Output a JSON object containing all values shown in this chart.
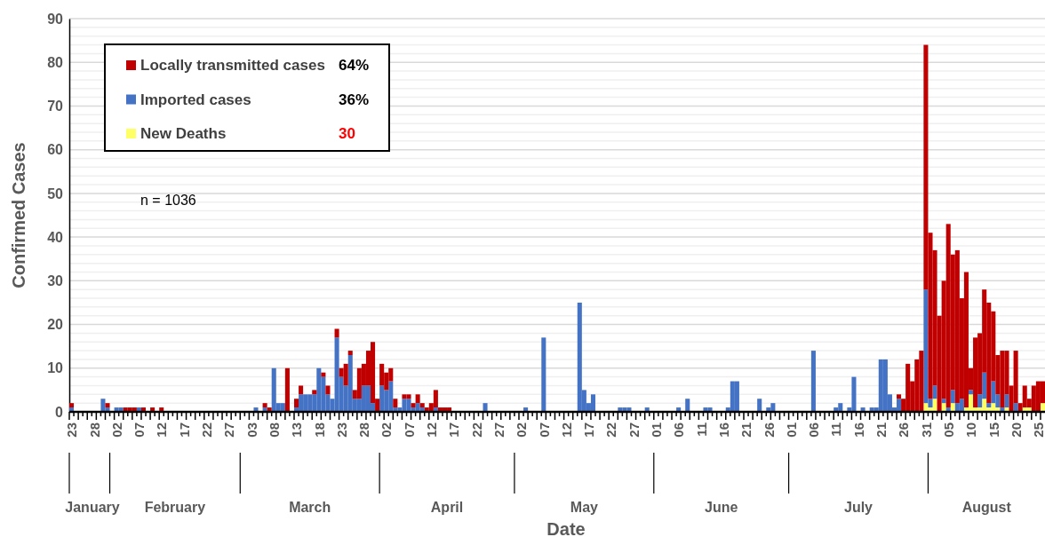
{
  "chart_data": {
    "type": "bar",
    "stacked": true,
    "xlabel": "Date",
    "ylabel": "Confirmed Cases",
    "x": [
      "--01-23",
      "--01-24",
      "--01-25",
      "--01-26",
      "--01-27",
      "--01-28",
      "--01-29",
      "--01-30",
      "--01-31",
      "--02-01",
      "--02-02",
      "--02-03",
      "--02-04",
      "--02-05",
      "--02-06",
      "--02-07",
      "--02-08",
      "--02-09",
      "--02-10",
      "--02-11",
      "--02-12",
      "--02-13",
      "--02-14",
      "--02-15",
      "--02-16",
      "--02-17",
      "--02-18",
      "--02-19",
      "--02-20",
      "--02-21",
      "--02-22",
      "--02-23",
      "--02-24",
      "--02-25",
      "--02-26",
      "--02-27",
      "--02-28",
      "--02-29",
      "--03-01",
      "--03-02",
      "--03-03",
      "--03-04",
      "--03-05",
      "--03-06",
      "--03-07",
      "--03-08",
      "--03-09",
      "--03-10",
      "--03-11",
      "--03-12",
      "--03-13",
      "--03-14",
      "--03-15",
      "--03-16",
      "--03-17",
      "--03-18",
      "--03-19",
      "--03-20",
      "--03-21",
      "--03-22",
      "--03-23",
      "--03-24",
      "--03-25",
      "--03-26",
      "--03-27",
      "--03-28",
      "--03-29",
      "--03-30",
      "--03-31",
      "--04-01",
      "--04-02",
      "--04-03",
      "--04-04",
      "--04-05",
      "--04-06",
      "--04-07",
      "--04-08",
      "--04-09",
      "--04-10",
      "--04-11",
      "--04-12",
      "--04-13",
      "--04-14",
      "--04-15",
      "--04-16",
      "--04-17",
      "--04-18",
      "--04-19",
      "--04-20",
      "--04-21",
      "--04-22",
      "--04-23",
      "--04-24",
      "--04-25",
      "--04-26",
      "--04-27",
      "--04-28",
      "--04-29",
      "--04-30",
      "--05-01",
      "--05-02",
      "--05-03",
      "--05-04",
      "--05-05",
      "--05-06",
      "--05-07",
      "--05-08",
      "--05-09",
      "--05-10",
      "--05-11",
      "--05-12",
      "--05-13",
      "--05-14",
      "--05-15",
      "--05-16",
      "--05-17",
      "--05-18",
      "--05-19",
      "--05-20",
      "--05-21",
      "--05-22",
      "--05-23",
      "--05-24",
      "--05-25",
      "--05-26",
      "--05-27",
      "--05-28",
      "--05-29",
      "--05-30",
      "--05-31",
      "--06-01",
      "--06-02",
      "--06-03",
      "--06-04",
      "--06-05",
      "--06-06",
      "--06-07",
      "--06-08",
      "--06-09",
      "--06-10",
      "--06-11",
      "--06-12",
      "--06-13",
      "--06-14",
      "--06-15",
      "--06-16",
      "--06-17",
      "--06-18",
      "--06-19",
      "--06-20",
      "--06-21",
      "--06-22",
      "--06-23",
      "--06-24",
      "--06-25",
      "--06-26",
      "--06-27",
      "--06-28",
      "--06-29",
      "--06-30",
      "--07-01",
      "--07-02",
      "--07-03",
      "--07-04",
      "--07-05",
      "--07-06",
      "--07-07",
      "--07-08",
      "--07-09",
      "--07-10",
      "--07-11",
      "--07-12",
      "--07-13",
      "--07-14",
      "--07-15",
      "--07-16",
      "--07-17",
      "--07-18",
      "--07-19",
      "--07-20",
      "--07-21",
      "--07-22",
      "--07-23",
      "--07-24",
      "--07-25",
      "--07-26",
      "--07-27",
      "--07-28",
      "--07-29",
      "--07-30",
      "--07-31",
      "--08-01",
      "--08-02",
      "--08-03",
      "--08-04",
      "--08-05",
      "--08-06",
      "--08-07",
      "--08-08",
      "--08-09",
      "--08-10",
      "--08-11",
      "--08-12",
      "--08-13",
      "--08-14",
      "--08-15",
      "--08-16",
      "--08-17",
      "--08-18",
      "--08-19",
      "--08-20",
      "--08-21",
      "--08-22",
      "--08-23",
      "--08-24",
      "--08-25",
      "--08-26"
    ],
    "xlim": [
      "--01-23",
      "--08-26"
    ],
    "xticks": [
      {
        "value": "--01-23",
        "label": "23"
      },
      {
        "value": "--01-28",
        "label": "28"
      },
      {
        "value": "--02-02",
        "label": "02"
      },
      {
        "value": "--02-07",
        "label": "07"
      },
      {
        "value": "--02-12",
        "label": "12"
      },
      {
        "value": "--02-17",
        "label": "17"
      },
      {
        "value": "--02-22",
        "label": "22"
      },
      {
        "value": "--02-27",
        "label": "27"
      },
      {
        "value": "--03-03",
        "label": "03"
      },
      {
        "value": "--03-08",
        "label": "08"
      },
      {
        "value": "--03-13",
        "label": "13"
      },
      {
        "value": "--03-18",
        "label": "18"
      },
      {
        "value": "--03-23",
        "label": "23"
      },
      {
        "value": "--03-28",
        "label": "28"
      },
      {
        "value": "--04-02",
        "label": "02"
      },
      {
        "value": "--04-07",
        "label": "07"
      },
      {
        "value": "--04-12",
        "label": "12"
      },
      {
        "value": "--04-17",
        "label": "17"
      },
      {
        "value": "--04-22",
        "label": "22"
      },
      {
        "value": "--04-27",
        "label": "27"
      },
      {
        "value": "--05-02",
        "label": "02"
      },
      {
        "value": "--05-07",
        "label": "07"
      },
      {
        "value": "--05-12",
        "label": "12"
      },
      {
        "value": "--05-17",
        "label": "17"
      },
      {
        "value": "--05-22",
        "label": "22"
      },
      {
        "value": "--05-27",
        "label": "27"
      },
      {
        "value": "--06-01",
        "label": "01"
      },
      {
        "value": "--06-06",
        "label": "06"
      },
      {
        "value": "--06-11",
        "label": "11"
      },
      {
        "value": "--06-16",
        "label": "16"
      },
      {
        "value": "--06-21",
        "label": "21"
      },
      {
        "value": "--06-26",
        "label": "26"
      },
      {
        "value": "--07-01",
        "label": "01"
      },
      {
        "value": "--07-06",
        "label": "06"
      },
      {
        "value": "--07-11",
        "label": "11"
      },
      {
        "value": "--07-16",
        "label": "16"
      },
      {
        "value": "--07-21",
        "label": "21"
      },
      {
        "value": "--07-26",
        "label": "26"
      },
      {
        "value": "--07-31",
        "label": "31"
      },
      {
        "value": "--08-05",
        "label": "05"
      },
      {
        "value": "--08-10",
        "label": "10"
      },
      {
        "value": "--08-15",
        "label": "15"
      },
      {
        "value": "--08-20",
        "label": "20"
      },
      {
        "value": "--08-25",
        "label": "25"
      }
    ],
    "ylim": [
      0,
      90
    ],
    "yticks": [
      0,
      {
        "value": 2,
        "label": null
      },
      {
        "value": 4,
        "label": null
      },
      {
        "value": 6,
        "label": null
      },
      {
        "value": 8,
        "label": null
      },
      10,
      {
        "value": 12,
        "label": null
      },
      {
        "value": 14,
        "label": null
      },
      {
        "value": 16,
        "label": null
      },
      {
        "value": 18,
        "label": null
      },
      20,
      {
        "value": 22,
        "label": null
      },
      {
        "value": 24,
        "label": null
      },
      {
        "value": 26,
        "label": null
      },
      {
        "value": 28,
        "label": null
      },
      30,
      {
        "value": 32,
        "label": null
      },
      {
        "value": 34,
        "label": null
      },
      {
        "value": 36,
        "label": null
      },
      {
        "value": 38,
        "label": null
      },
      40,
      {
        "value": 42,
        "label": null
      },
      {
        "value": 44,
        "label": null
      },
      {
        "value": 46,
        "label": null
      },
      {
        "value": 48,
        "label": null
      },
      50,
      {
        "value": 52,
        "label": null
      },
      {
        "value": 54,
        "label": null
      },
      {
        "value": 56,
        "label": null
      },
      {
        "value": 58,
        "label": null
      },
      60,
      {
        "value": 62,
        "label": null
      },
      {
        "value": 64,
        "label": null
      },
      {
        "value": 66,
        "label": null
      },
      {
        "value": 68,
        "label": null
      },
      70,
      {
        "value": 72,
        "label": null
      },
      {
        "value": 74,
        "label": null
      },
      {
        "value": 76,
        "label": null
      },
      {
        "value": 78,
        "label": null
      },
      80,
      {
        "value": 82,
        "label": null
      },
      {
        "value": 84,
        "label": null
      },
      {
        "value": 86,
        "label": null
      },
      {
        "value": 88,
        "label": null
      },
      90
    ],
    "grid": "y",
    "legend": "top left",
    "series": [
      {
        "name": "New Deaths",
        "color": "#ffff66",
        "values": [
          0,
          0,
          0,
          0,
          0,
          0,
          0,
          0,
          0,
          0,
          0,
          0,
          0,
          0,
          0,
          0,
          0,
          0,
          0,
          0,
          0,
          0,
          0,
          0,
          0,
          0,
          0,
          0,
          0,
          0,
          0,
          0,
          0,
          0,
          0,
          0,
          0,
          0,
          0,
          0,
          0,
          0,
          0,
          0,
          0,
          0,
          0,
          0,
          0,
          0,
          0,
          0,
          0,
          0,
          0,
          0,
          0,
          0,
          0,
          0,
          0,
          0,
          0,
          0,
          0,
          0,
          0,
          0,
          0,
          0,
          0,
          0,
          0,
          0,
          0,
          0,
          0,
          0,
          0,
          0,
          0,
          0,
          0,
          0,
          0,
          0,
          0,
          0,
          0,
          0,
          0,
          0,
          0,
          0,
          0,
          0,
          0,
          0,
          0,
          0,
          0,
          0,
          0,
          0,
          0,
          0,
          0,
          0,
          0,
          0,
          0,
          0,
          0,
          0,
          0,
          0,
          0,
          0,
          0,
          0,
          0,
          0,
          0,
          0,
          0,
          0,
          0,
          0,
          0,
          0,
          0,
          0,
          0,
          0,
          0,
          0,
          0,
          0,
          0,
          0,
          0,
          0,
          0,
          0,
          0,
          0,
          0,
          0,
          0,
          0,
          0,
          0,
          0,
          0,
          0,
          0,
          0,
          0,
          0,
          0,
          0,
          0,
          0,
          0,
          0,
          0,
          0,
          0,
          0,
          0,
          0,
          0,
          0,
          0,
          0,
          0,
          0,
          0,
          0,
          0,
          0,
          0,
          0,
          0,
          0,
          0,
          0,
          0,
          0,
          0,
          2,
          1,
          3,
          0,
          2,
          0,
          2,
          0,
          0,
          1,
          4,
          1,
          1,
          3,
          1,
          2,
          1,
          0,
          1,
          0,
          0,
          0,
          1,
          1,
          0,
          0,
          2
        ]
      },
      {
        "name": "Imported cases",
        "color": "#4472c4",
        "values": [
          1,
          0,
          0,
          0,
          0,
          0,
          0,
          3,
          1,
          0,
          1,
          1,
          0,
          0,
          0,
          1,
          0,
          0,
          0,
          0,
          0,
          0,
          0,
          0,
          0,
          0,
          0,
          0,
          0,
          0,
          0,
          0,
          0,
          0,
          0,
          0,
          0,
          0,
          0,
          0,
          0,
          1,
          0,
          1,
          0,
          10,
          2,
          2,
          0,
          0,
          1,
          4,
          4,
          4,
          4,
          10,
          8,
          4,
          3,
          17,
          8,
          6,
          13,
          3,
          3,
          6,
          6,
          2,
          0,
          6,
          5,
          7,
          1,
          1,
          3,
          3,
          1,
          2,
          1,
          0,
          0,
          1,
          0,
          0,
          0,
          0,
          0,
          0,
          0,
          0,
          0,
          0,
          2,
          0,
          0,
          0,
          0,
          0,
          0,
          0,
          0,
          1,
          0,
          0,
          0,
          17,
          0,
          0,
          0,
          0,
          0,
          0,
          0,
          25,
          5,
          2,
          4,
          0,
          0,
          0,
          0,
          0,
          1,
          1,
          1,
          0,
          0,
          0,
          1,
          0,
          0,
          0,
          0,
          0,
          0,
          1,
          0,
          3,
          0,
          0,
          0,
          1,
          1,
          0,
          0,
          0,
          1,
          7,
          7,
          0,
          0,
          0,
          0,
          3,
          0,
          1,
          2,
          0,
          0,
          0,
          0,
          0,
          0,
          0,
          0,
          14,
          0,
          0,
          0,
          0,
          1,
          2,
          0,
          1,
          8,
          0,
          1,
          0,
          1,
          1,
          12,
          12,
          4,
          1,
          3,
          0,
          0,
          0,
          0,
          0,
          26,
          2,
          3,
          0,
          1,
          1,
          3,
          2,
          3,
          0,
          1,
          0,
          3,
          6,
          1,
          5,
          3,
          1,
          3,
          0,
          2,
          0,
          0,
          0,
          0,
          0,
          0
        ]
      },
      {
        "name": "Locally transmitted cases",
        "color": "#c00000",
        "values": [
          1,
          0,
          0,
          0,
          0,
          0,
          0,
          0,
          1,
          0,
          0,
          0,
          1,
          1,
          1,
          0,
          1,
          0,
          1,
          0,
          1,
          0,
          0,
          0,
          0,
          0,
          0,
          0,
          0,
          0,
          0,
          0,
          0,
          0,
          0,
          0,
          0,
          0,
          0,
          0,
          0,
          0,
          0,
          1,
          1,
          0,
          0,
          0,
          10,
          0,
          2,
          2,
          0,
          0,
          1,
          0,
          1,
          2,
          0,
          2,
          2,
          5,
          1,
          2,
          7,
          5,
          8,
          14,
          3,
          5,
          4,
          3,
          2,
          0,
          1,
          1,
          1,
          2,
          1,
          1,
          2,
          4,
          1,
          1,
          1,
          0,
          0,
          0,
          0,
          0,
          0,
          0,
          0,
          0,
          0,
          0,
          0,
          0,
          0,
          0,
          0,
          0,
          0,
          0,
          0,
          0,
          0,
          0,
          0,
          0,
          0,
          0,
          0,
          0,
          0,
          0,
          0,
          0,
          0,
          0,
          0,
          0,
          0,
          0,
          0,
          0,
          0,
          0,
          0,
          0,
          0,
          0,
          0,
          0,
          0,
          0,
          0,
          0,
          0,
          0,
          0,
          0,
          0,
          0,
          0,
          0,
          0,
          0,
          0,
          0,
          0,
          0,
          0,
          0,
          0,
          0,
          0,
          0,
          0,
          0,
          0,
          0,
          0,
          0,
          0,
          0,
          0,
          0,
          0,
          0,
          0,
          0,
          0,
          0,
          0,
          0,
          0,
          0,
          0,
          0,
          0,
          0,
          0,
          0,
          1,
          3,
          11,
          7,
          12,
          14,
          56,
          38,
          31,
          22,
          27,
          42,
          31,
          35,
          23,
          31,
          5,
          16,
          14,
          19,
          23,
          16,
          9,
          13,
          10,
          6,
          12,
          2,
          5,
          2,
          6,
          7,
          5
        ]
      }
    ],
    "annotations": [
      "64%",
      "36%",
      "30",
      "n = 1036",
      "January",
      "February",
      "March",
      "April",
      "May",
      "June",
      "July",
      "August"
    ]
  }
}
